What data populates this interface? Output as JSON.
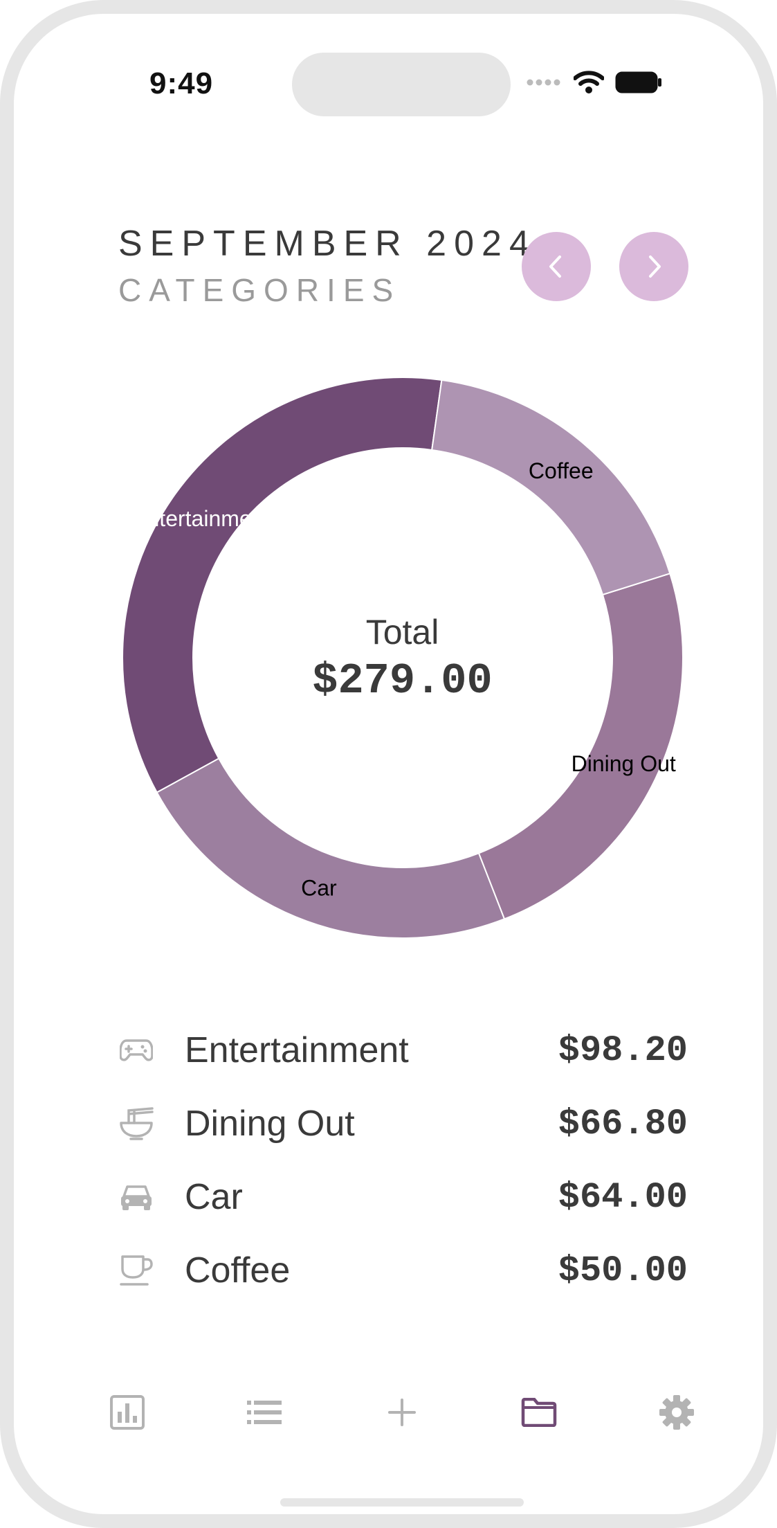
{
  "status_bar": {
    "time": "9:49"
  },
  "header": {
    "month": "SEPTEMBER 2024",
    "subtitle": "CATEGORIES"
  },
  "nav": {
    "prev_icon": "chevron-left-icon",
    "next_icon": "chevron-right-icon"
  },
  "chart_data": {
    "type": "pie",
    "categories": [
      "Entertainment",
      "Car",
      "Dining Out",
      "Coffee"
    ],
    "values": [
      98.2,
      64.0,
      66.8,
      50.0
    ],
    "colors": [
      "#704b75",
      "#9c7f9f",
      "#9a7899",
      "#ae94b2"
    ],
    "label_colors": [
      "#ffffff",
      "#000000",
      "#000000",
      "#000000"
    ],
    "labels": [
      "Entertainment",
      "Car",
      "Dining Out",
      "Coffee"
    ],
    "center_label": "Total",
    "center_value": "$279.00"
  },
  "categories": [
    {
      "icon": "gamepad-icon",
      "name": "Entertainment",
      "amount": "$98.20"
    },
    {
      "icon": "noodle-bowl-icon",
      "name": "Dining Out",
      "amount": "$66.80"
    },
    {
      "icon": "car-icon",
      "name": "Car",
      "amount": "$64.00"
    },
    {
      "icon": "coffee-cup-icon",
      "name": "Coffee",
      "amount": "$50.00"
    }
  ],
  "tabbar": {
    "items": [
      {
        "icon": "bar-chart-icon",
        "active": false
      },
      {
        "icon": "list-icon",
        "active": false
      },
      {
        "icon": "plus-icon",
        "active": false
      },
      {
        "icon": "folder-icon",
        "active": true
      },
      {
        "icon": "gear-icon",
        "active": false
      }
    ],
    "active_color": "#704b75",
    "inactive_color": "#b3b3b3"
  }
}
